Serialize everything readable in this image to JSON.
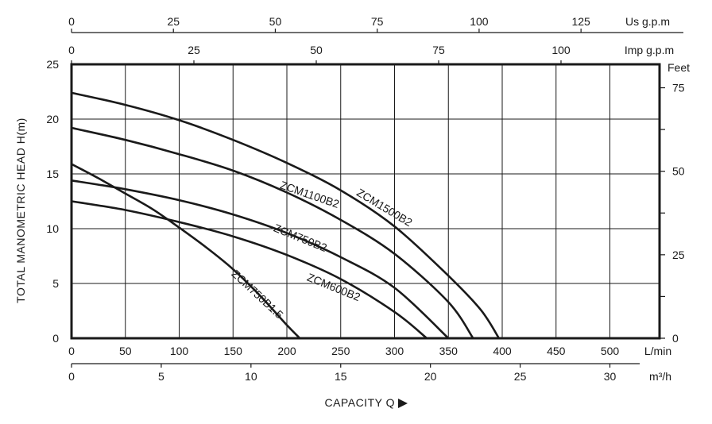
{
  "chart_data": {
    "type": "line",
    "ylabel": "TOTAL MANOMETRIC HEAD  H(m)",
    "xlabel": "CAPACITY  Q",
    "x_unit": "L/min",
    "y_unit_right": "Feet",
    "xlim": [
      0,
      540
    ],
    "ylim": [
      0,
      25
    ],
    "grid": true,
    "x_ticks": [
      0,
      50,
      100,
      150,
      200,
      250,
      300,
      350,
      400,
      450,
      500
    ],
    "x_tick_labels": [
      "0",
      "50",
      "100",
      "150",
      "200",
      "250",
      "300",
      "350",
      "400",
      "450",
      "500"
    ],
    "y_ticks": [
      0,
      5,
      10,
      15,
      20,
      25
    ],
    "y_tick_labels": [
      "0",
      "5",
      "10",
      "15",
      "20",
      "25"
    ],
    "right_axis": {
      "unit": "Feet",
      "ticks": [
        0,
        25,
        50,
        75
      ],
      "tick_labels": [
        "0",
        "25",
        "50",
        "75"
      ],
      "minor_ticks": [
        12.5,
        37.5,
        62.5
      ]
    },
    "bottom_axis_2": {
      "unit": "m³/h",
      "ticks": [
        0,
        5,
        10,
        15,
        20,
        25,
        30
      ],
      "tick_labels": [
        "0",
        "5",
        "10",
        "15",
        "20",
        "25",
        "30"
      ]
    },
    "top_axis_imp": {
      "unit": "Imp g.p.m",
      "ticks": [
        0,
        25,
        50,
        75,
        100
      ],
      "tick_labels": [
        "0",
        "25",
        "50",
        "75",
        "100"
      ]
    },
    "top_axis_us": {
      "unit": "Us g.p.m",
      "ticks": [
        0,
        25,
        50,
        75,
        100,
        125
      ],
      "tick_labels": [
        "0",
        "25",
        "50",
        "75",
        "100",
        "125"
      ]
    },
    "series": [
      {
        "name": "ZCM1500B2",
        "x": [
          0,
          50,
          100,
          150,
          200,
          250,
          300,
          350,
          380,
          397
        ],
        "y": [
          22.4,
          21.3,
          19.9,
          18.1,
          16.0,
          13.5,
          10.2,
          5.7,
          2.6,
          0
        ]
      },
      {
        "name": "ZCM1100B2",
        "x": [
          0,
          50,
          100,
          150,
          200,
          250,
          300,
          350,
          373
        ],
        "y": [
          19.2,
          18.1,
          16.8,
          15.3,
          13.3,
          10.8,
          7.7,
          3.3,
          0
        ]
      },
      {
        "name": "ZCM750B2",
        "x": [
          0,
          50,
          100,
          150,
          200,
          250,
          300,
          350
        ],
        "y": [
          14.4,
          13.6,
          12.6,
          11.3,
          9.6,
          7.4,
          4.6,
          0
        ]
      },
      {
        "name": "ZCM600B2",
        "x": [
          0,
          50,
          100,
          150,
          200,
          250,
          300,
          330
        ],
        "y": [
          12.5,
          11.7,
          10.6,
          9.3,
          7.6,
          5.4,
          2.4,
          0
        ]
      },
      {
        "name": "ZCM750B1.5",
        "x": [
          0,
          25,
          50,
          75,
          100,
          125,
          150,
          175,
          200,
          212
        ],
        "y": [
          15.9,
          14.6,
          13.2,
          11.8,
          10.1,
          8.3,
          6.3,
          3.9,
          1.2,
          0
        ]
      }
    ]
  }
}
